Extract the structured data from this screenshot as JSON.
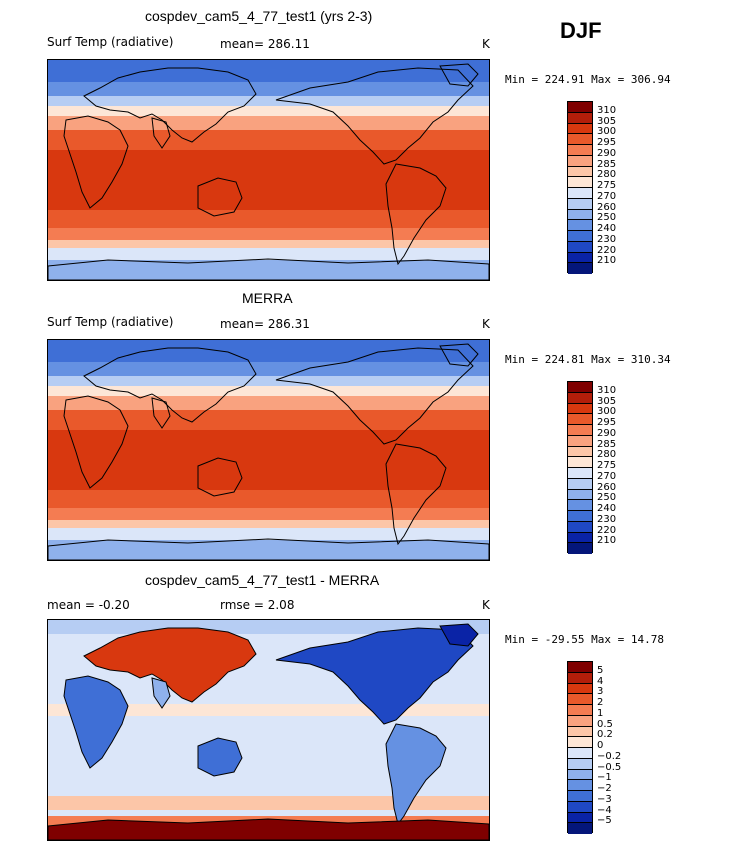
{
  "season": "DJF",
  "panels": [
    {
      "title": "cospdev_cam5_4_77_test1 (yrs 2-3)",
      "left_label": "Surf Temp (radiative)",
      "center_label": "mean=  286.11",
      "unit": "K",
      "minmax": "Min = 224.91 Max = 306.94",
      "kind": "temp"
    },
    {
      "title": "MERRA",
      "left_label": "Surf Temp (radiative)",
      "center_label": "mean=  286.31",
      "unit": "K",
      "minmax": "Min = 224.81 Max = 310.34",
      "kind": "temp"
    },
    {
      "title": "cospdev_cam5_4_77_test1 - MERRA",
      "left_label": "mean =   -0.20",
      "center_label": "rmse =     2.08",
      "unit": "K",
      "minmax": "Min = -29.55 Max =  14.78",
      "kind": "diff"
    }
  ],
  "chart_data": [
    {
      "type": "heatmap",
      "title": "cospdev_cam5_4_77_test1 (yrs 2-3)",
      "variable": "Surf Temp (radiative)",
      "units": "K",
      "mean": 286.11,
      "min": 224.91,
      "max": 306.94,
      "colorbar_levels": [
        "310",
        "305",
        "300",
        "295",
        "290",
        "285",
        "280",
        "275",
        "270",
        "260",
        "250",
        "240",
        "230",
        "220",
        "210"
      ],
      "colorbar_colors": [
        "#7f0000",
        "#b31e0a",
        "#d8380f",
        "#e9592b",
        "#f47c52",
        "#f9a27f",
        "#fcc6a8",
        "#fde6d6",
        "#dbe6f9",
        "#b6cdf3",
        "#8fb1ec",
        "#6591e2",
        "#3f6fd6",
        "#1f48c4",
        "#0a23a6",
        "#04167a"
      ]
    },
    {
      "type": "heatmap",
      "title": "MERRA",
      "variable": "Surf Temp (radiative)",
      "units": "K",
      "mean": 286.31,
      "min": 224.81,
      "max": 310.34,
      "colorbar_levels": [
        "310",
        "305",
        "300",
        "295",
        "290",
        "285",
        "280",
        "275",
        "270",
        "260",
        "250",
        "240",
        "230",
        "220",
        "210"
      ],
      "colorbar_colors": [
        "#7f0000",
        "#b31e0a",
        "#d8380f",
        "#e9592b",
        "#f47c52",
        "#f9a27f",
        "#fcc6a8",
        "#fde6d6",
        "#dbe6f9",
        "#b6cdf3",
        "#8fb1ec",
        "#6591e2",
        "#3f6fd6",
        "#1f48c4",
        "#0a23a6",
        "#04167a"
      ]
    },
    {
      "type": "heatmap",
      "title": "cospdev_cam5_4_77_test1 - MERRA",
      "units": "K",
      "mean": -0.2,
      "rmse": 2.08,
      "min": -29.55,
      "max": 14.78,
      "colorbar_levels": [
        "5",
        "4",
        "3",
        "2",
        "1",
        "0.5",
        "0.2",
        "0",
        "−0.2",
        "−0.5",
        "−1",
        "−2",
        "−3",
        "−4",
        "−5"
      ],
      "colorbar_colors": [
        "#7f0000",
        "#b31e0a",
        "#d8380f",
        "#e9592b",
        "#f47c52",
        "#f9a27f",
        "#fcc6a8",
        "#fde6d6",
        "#dbe6f9",
        "#b6cdf3",
        "#8fb1ec",
        "#6591e2",
        "#3f6fd6",
        "#1f48c4",
        "#0a23a6",
        "#04167a"
      ]
    }
  ]
}
